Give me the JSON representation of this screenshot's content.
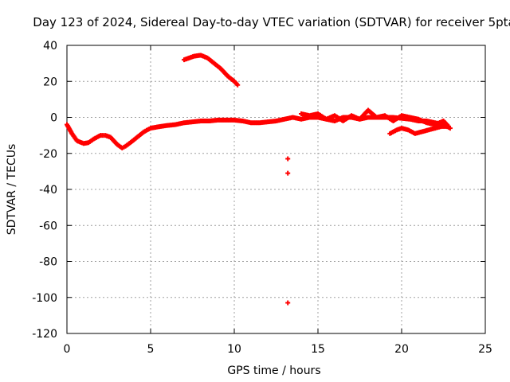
{
  "chart_data": {
    "type": "scatter",
    "title": "Day 123 of 2024, Sidereal Day-to-day VTEC variation (SDTVAR) for receiver 5pta",
    "xlabel": "GPS time / hours",
    "ylabel": "SDTVAR / TECUs",
    "xlim": [
      0,
      25
    ],
    "ylim": [
      -120,
      40
    ],
    "xticks": [
      0,
      5,
      10,
      15,
      20,
      25
    ],
    "yticks": [
      -120,
      -100,
      -80,
      -60,
      -40,
      -20,
      0,
      20,
      40
    ],
    "grid": true,
    "marker": "plus",
    "color": "#ff0000",
    "series": [
      {
        "name": "main trace",
        "x": [
          0.0,
          0.3,
          0.6,
          1.0,
          1.3,
          1.6,
          2.0,
          2.3,
          2.6,
          3.0,
          3.3,
          3.5,
          3.8,
          4.2,
          4.6,
          5.0,
          5.3,
          5.6,
          6.0,
          6.5,
          7.0,
          7.5,
          8.0,
          8.5,
          9.0,
          9.5,
          10.0,
          10.5,
          11.0,
          11.5,
          12.0,
          12.5,
          13.0,
          13.5,
          14.0,
          14.5,
          15.0,
          15.5,
          16.0,
          16.5,
          17.0,
          17.5,
          18.0,
          18.5,
          19.0,
          19.5,
          20.0,
          20.5,
          21.0,
          21.5,
          22.0,
          22.5,
          22.9
        ],
        "y": [
          -4,
          -9,
          -13,
          -14.5,
          -14,
          -12,
          -10,
          -10,
          -11,
          -15,
          -17,
          -16,
          -14,
          -11,
          -8,
          -6,
          -5.5,
          -5,
          -4.5,
          -4,
          -3,
          -2.5,
          -2,
          -2,
          -1.5,
          -1.5,
          -1.5,
          -2,
          -3,
          -3,
          -2.5,
          -2,
          -1,
          0,
          -1,
          0,
          0,
          -1,
          -2,
          0,
          0,
          -1,
          0,
          0,
          0,
          0,
          -0.5,
          -1,
          -2,
          -2,
          -3,
          -4,
          -6
        ]
      },
      {
        "name": "upper arc",
        "x": [
          7.0,
          7.3,
          7.6,
          8.0,
          8.4,
          8.8,
          9.2,
          9.6,
          10.0,
          10.2
        ],
        "y": [
          32,
          33,
          34,
          34.5,
          33,
          30,
          27,
          23,
          20,
          18
        ]
      },
      {
        "name": "late noise band",
        "x": [
          14.0,
          14.5,
          15.0,
          15.5,
          16.0,
          16.5,
          17.0,
          17.5,
          18.0,
          18.5,
          19.0,
          19.5,
          20.0,
          20.5,
          21.0,
          21.5,
          22.0,
          22.5,
          22.8
        ],
        "y": [
          2,
          1,
          2,
          -1,
          1,
          -2,
          1,
          -1,
          4,
          0,
          1,
          -2,
          1,
          0,
          -1,
          -3,
          -4,
          -2,
          -5
        ]
      },
      {
        "name": "lower tail",
        "x": [
          19.3,
          19.7,
          20.0,
          20.4,
          20.8,
          21.2,
          21.6,
          22.0,
          22.4,
          22.8
        ],
        "y": [
          -9,
          -7,
          -6,
          -7,
          -9,
          -8,
          -7,
          -6,
          -5,
          -5
        ]
      },
      {
        "name": "outliers",
        "x": [
          13.2,
          13.2,
          13.2
        ],
        "y": [
          -23,
          -31,
          -103
        ]
      }
    ]
  }
}
